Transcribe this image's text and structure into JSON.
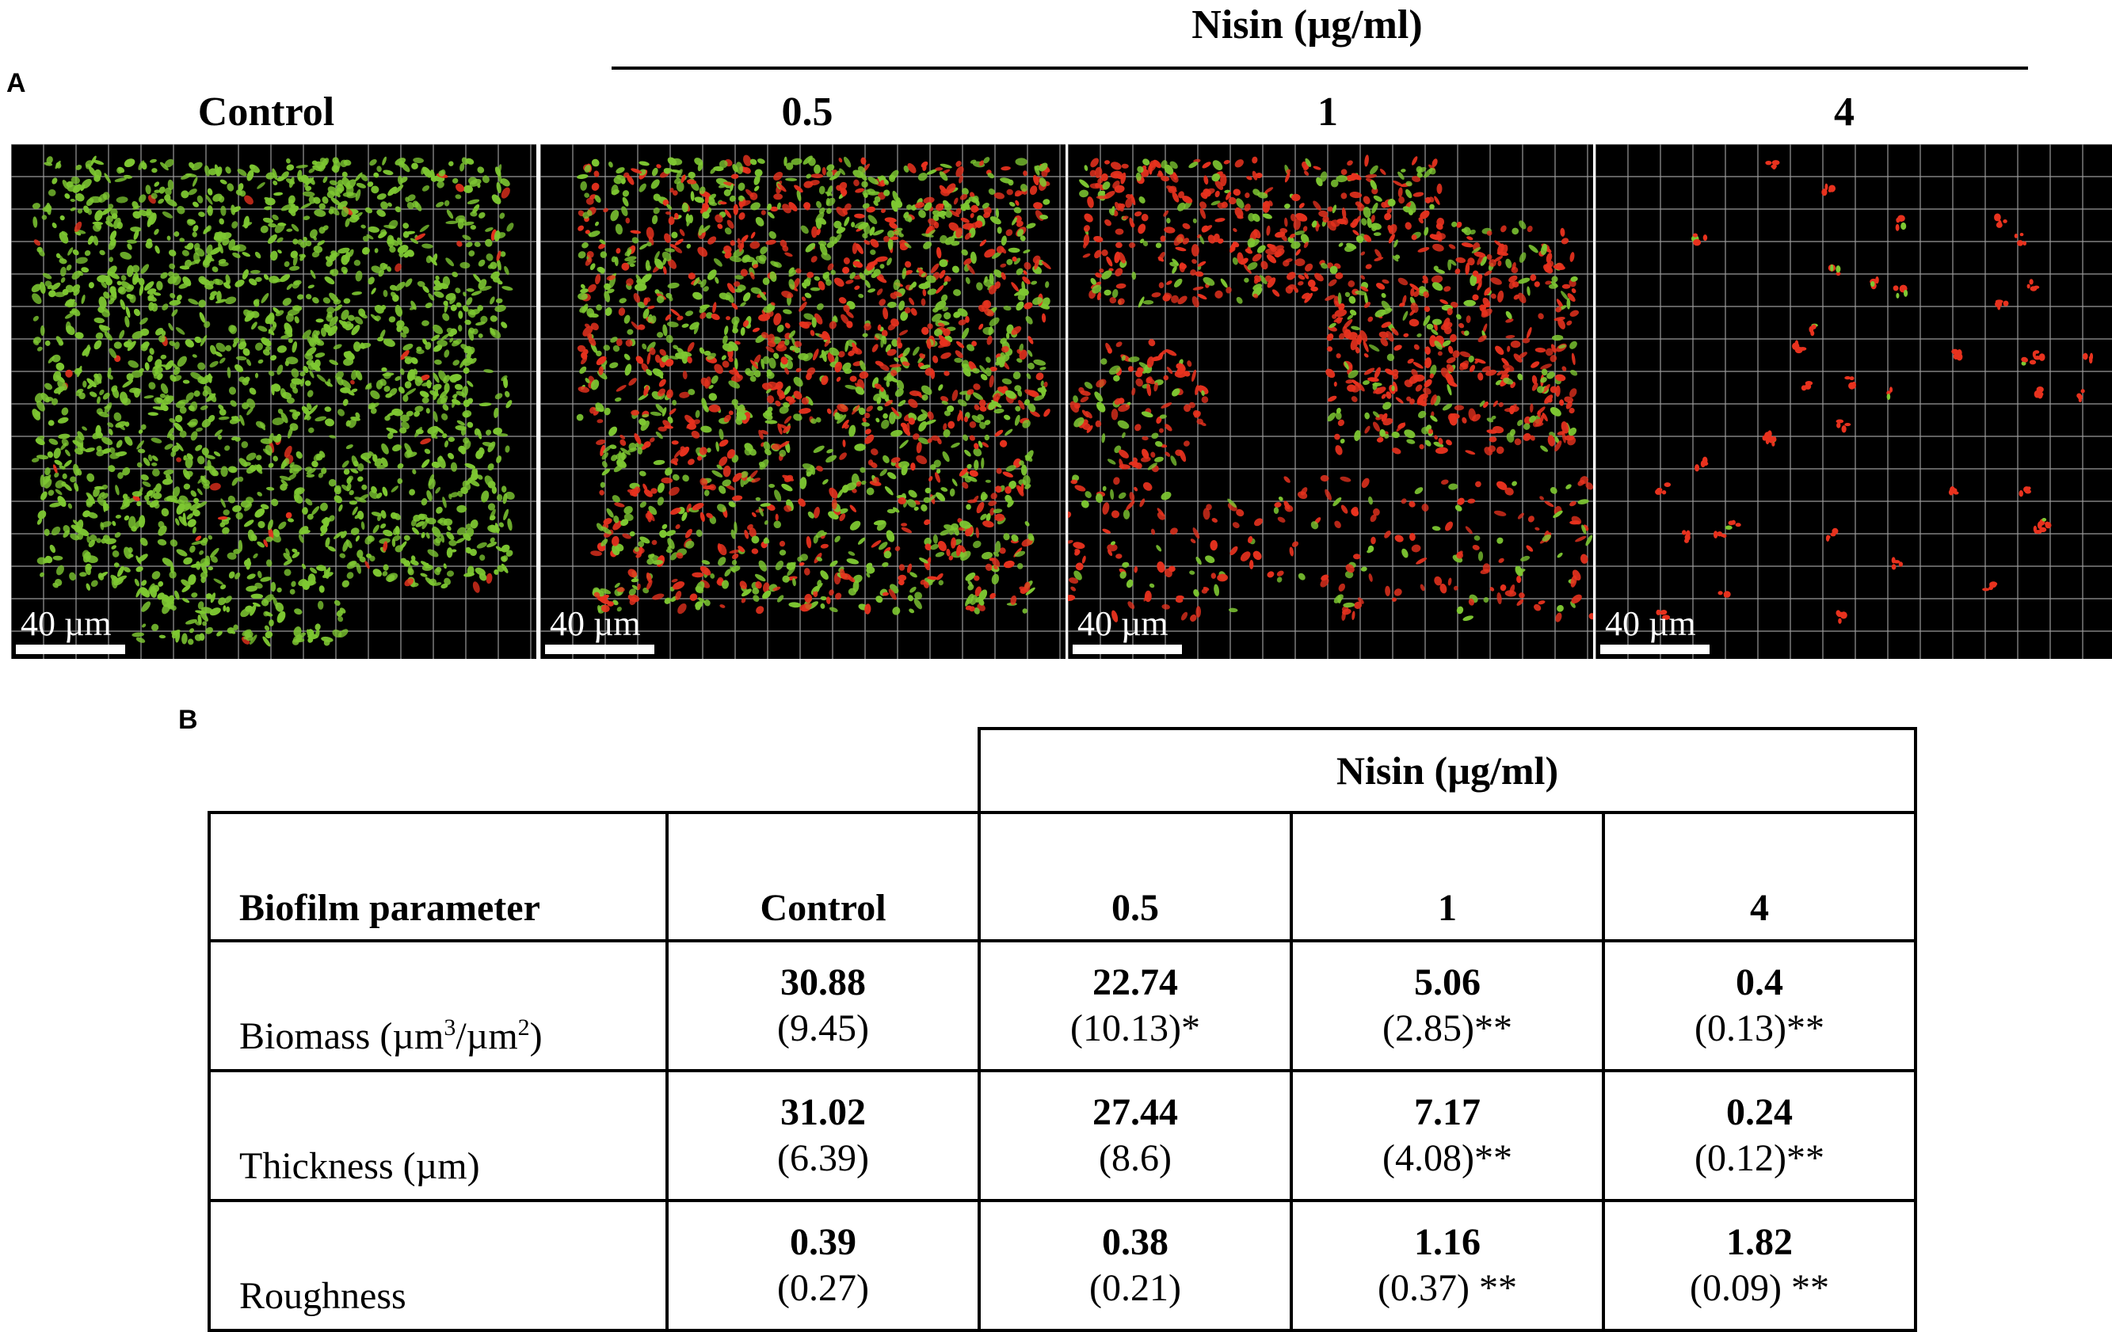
{
  "panel_labels": {
    "a": "A",
    "b": "B"
  },
  "header": {
    "treatment": "Nisin (µg/ml)"
  },
  "panel_a": {
    "columns": [
      {
        "label": "Control",
        "scale": "40 µm"
      },
      {
        "label": "0.5",
        "scale": "40 µm"
      },
      {
        "label": "1",
        "scale": "40 µm"
      },
      {
        "label": "4",
        "scale": "40 µm"
      }
    ],
    "colors": {
      "live": "#7ec832",
      "dead": "#e8321e",
      "background": "#000000",
      "grid": "#9a9a9a"
    }
  },
  "table": {
    "group_header": "Nisin (µg/ml)",
    "header": [
      "Biofilm parameter",
      "Control",
      "0.5",
      "1",
      "4"
    ],
    "rows": [
      {
        "parameter": "Biomass (µm",
        "param_sup1": "3",
        "param_mid": "/µm",
        "param_sup2": "2",
        "param_end": ")",
        "cells": [
          {
            "mean": "30.88",
            "sd": "(9.45)"
          },
          {
            "mean": "22.74",
            "sd": "(10.13)*"
          },
          {
            "mean": "5.06",
            "sd": "(2.85)**"
          },
          {
            "mean": "0.4",
            "sd": "(0.13)**"
          }
        ]
      },
      {
        "parameter": "Thickness (µm)",
        "cells": [
          {
            "mean": "31.02",
            "sd": "(6.39)"
          },
          {
            "mean": "27.44",
            "sd": "(8.6)"
          },
          {
            "mean": "7.17",
            "sd": "(4.08)**"
          },
          {
            "mean": "0.24",
            "sd": "(0.12)**"
          }
        ]
      },
      {
        "parameter": "Roughness",
        "cells": [
          {
            "mean": "0.39",
            "sd": "(0.27)"
          },
          {
            "mean": "0.38",
            "sd": "(0.21)"
          },
          {
            "mean": "1.16",
            "sd": "(0.37) **"
          },
          {
            "mean": "1.82",
            "sd": "(0.09) **"
          }
        ]
      }
    ]
  }
}
